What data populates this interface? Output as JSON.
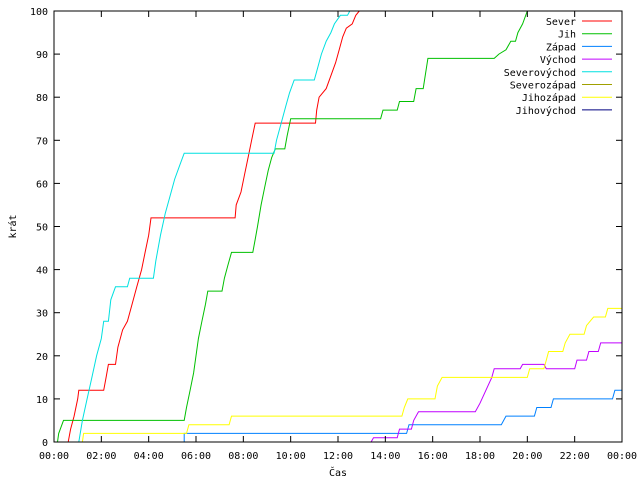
{
  "chart_data": {
    "type": "line",
    "title": "",
    "xlabel": "Čas",
    "ylabel": "krát",
    "xlim": [
      0,
      24
    ],
    "ylim": [
      0,
      100
    ],
    "x_ticks": [
      {
        "value": 0,
        "label": "00:00"
      },
      {
        "value": 2,
        "label": "02:00"
      },
      {
        "value": 4,
        "label": "04:00"
      },
      {
        "value": 6,
        "label": "06:00"
      },
      {
        "value": 8,
        "label": "08:00"
      },
      {
        "value": 10,
        "label": "10:00"
      },
      {
        "value": 12,
        "label": "12:00"
      },
      {
        "value": 14,
        "label": "14:00"
      },
      {
        "value": 16,
        "label": "16:00"
      },
      {
        "value": 18,
        "label": "18:00"
      },
      {
        "value": 20,
        "label": "20:00"
      },
      {
        "value": 22,
        "label": "22:00"
      },
      {
        "value": 24,
        "label": "00:00"
      }
    ],
    "y_ticks": [
      0,
      10,
      20,
      30,
      40,
      50,
      60,
      70,
      80,
      90,
      100
    ],
    "grid": false,
    "legend_position": "top-right",
    "series": [
      {
        "name": "Sever",
        "color": "#ff0000",
        "points": [
          [
            0,
            0
          ],
          [
            0.6,
            0
          ],
          [
            0.7,
            3
          ],
          [
            0.85,
            6
          ],
          [
            1.0,
            10
          ],
          [
            1.05,
            12
          ],
          [
            2.1,
            12
          ],
          [
            2.2,
            15
          ],
          [
            2.3,
            18
          ],
          [
            2.6,
            18
          ],
          [
            2.7,
            22
          ],
          [
            2.9,
            26
          ],
          [
            3.1,
            28
          ],
          [
            3.3,
            32
          ],
          [
            3.5,
            36
          ],
          [
            3.7,
            40
          ],
          [
            3.85,
            44
          ],
          [
            4.0,
            48
          ],
          [
            4.1,
            52
          ],
          [
            7.65,
            52
          ],
          [
            7.7,
            55
          ],
          [
            7.9,
            58
          ],
          [
            8.05,
            62
          ],
          [
            8.2,
            66
          ],
          [
            8.35,
            70
          ],
          [
            8.5,
            74
          ],
          [
            11.05,
            74
          ],
          [
            11.1,
            77
          ],
          [
            11.2,
            80
          ],
          [
            11.5,
            82
          ],
          [
            11.7,
            85
          ],
          [
            11.9,
            88
          ],
          [
            12.05,
            91
          ],
          [
            12.2,
            94
          ],
          [
            12.35,
            96
          ],
          [
            12.6,
            97
          ],
          [
            12.75,
            99
          ],
          [
            12.9,
            100
          ]
        ]
      },
      {
        "name": "Jih",
        "color": "#00c000",
        "points": [
          [
            0,
            0
          ],
          [
            0.15,
            0
          ],
          [
            0.2,
            2
          ],
          [
            0.4,
            5
          ],
          [
            5.5,
            5
          ],
          [
            5.6,
            8
          ],
          [
            5.75,
            12
          ],
          [
            5.9,
            16
          ],
          [
            6.0,
            20
          ],
          [
            6.1,
            24
          ],
          [
            6.25,
            28
          ],
          [
            6.4,
            32
          ],
          [
            6.5,
            35
          ],
          [
            7.1,
            35
          ],
          [
            7.2,
            38
          ],
          [
            7.35,
            41
          ],
          [
            7.5,
            44
          ],
          [
            8.4,
            44
          ],
          [
            8.5,
            47
          ],
          [
            8.6,
            50
          ],
          [
            8.75,
            55
          ],
          [
            8.9,
            59
          ],
          [
            9.05,
            63
          ],
          [
            9.2,
            66
          ],
          [
            9.35,
            68
          ],
          [
            9.75,
            68
          ],
          [
            9.85,
            71
          ],
          [
            10.0,
            75
          ],
          [
            13.8,
            75
          ],
          [
            13.9,
            77
          ],
          [
            14.5,
            77
          ],
          [
            14.6,
            79
          ],
          [
            15.2,
            79
          ],
          [
            15.3,
            82
          ],
          [
            15.6,
            82
          ],
          [
            15.8,
            89
          ],
          [
            18.6,
            89
          ],
          [
            18.8,
            90
          ],
          [
            19.1,
            91
          ],
          [
            19.3,
            93
          ],
          [
            19.5,
            93
          ],
          [
            19.6,
            95
          ],
          [
            19.8,
            97
          ],
          [
            20.0,
            100
          ]
        ]
      },
      {
        "name": "Západ",
        "color": "#0080ff",
        "points": [
          [
            0,
            0
          ],
          [
            5.5,
            0
          ],
          [
            5.5,
            2
          ],
          [
            14.9,
            2
          ],
          [
            15.0,
            4
          ],
          [
            18.9,
            4
          ],
          [
            19.1,
            6
          ],
          [
            20.3,
            6
          ],
          [
            20.4,
            8
          ],
          [
            21.0,
            8
          ],
          [
            21.1,
            10
          ],
          [
            23.6,
            10
          ],
          [
            23.7,
            12
          ],
          [
            24,
            12
          ]
        ]
      },
      {
        "name": "Východ",
        "color": "#c000ff",
        "points": [
          [
            0,
            0
          ],
          [
            13.4,
            0
          ],
          [
            13.5,
            1
          ],
          [
            14.5,
            1
          ],
          [
            14.6,
            3
          ],
          [
            15.1,
            3
          ],
          [
            15.2,
            5
          ],
          [
            15.4,
            7
          ],
          [
            17.8,
            7
          ],
          [
            18.0,
            9
          ],
          [
            18.5,
            15
          ],
          [
            18.6,
            17
          ],
          [
            19.7,
            17
          ],
          [
            19.8,
            18
          ],
          [
            20.7,
            18
          ],
          [
            20.8,
            17
          ],
          [
            22.0,
            17
          ],
          [
            22.1,
            19
          ],
          [
            22.5,
            19
          ],
          [
            22.6,
            21
          ],
          [
            23.0,
            21
          ],
          [
            23.1,
            23
          ],
          [
            24,
            23
          ]
        ]
      },
      {
        "name": "Severovýchod",
        "color": "#00e0e0",
        "points": [
          [
            0,
            0
          ],
          [
            1.05,
            0
          ],
          [
            1.2,
            5
          ],
          [
            1.4,
            10
          ],
          [
            1.6,
            15
          ],
          [
            1.8,
            20
          ],
          [
            2.0,
            24
          ],
          [
            2.1,
            28
          ],
          [
            2.3,
            28
          ],
          [
            2.4,
            33
          ],
          [
            2.6,
            36
          ],
          [
            3.1,
            36
          ],
          [
            3.2,
            38
          ],
          [
            4.2,
            38
          ],
          [
            4.3,
            42
          ],
          [
            4.5,
            48
          ],
          [
            4.7,
            53
          ],
          [
            4.9,
            57
          ],
          [
            5.1,
            61
          ],
          [
            5.3,
            64
          ],
          [
            5.5,
            67
          ],
          [
            9.3,
            67
          ],
          [
            9.4,
            70
          ],
          [
            9.6,
            74
          ],
          [
            9.8,
            78
          ],
          [
            9.95,
            81
          ],
          [
            10.15,
            84
          ],
          [
            11.0,
            84
          ],
          [
            11.15,
            87
          ],
          [
            11.3,
            90
          ],
          [
            11.5,
            93
          ],
          [
            11.7,
            95
          ],
          [
            11.85,
            97
          ],
          [
            12.1,
            99
          ],
          [
            12.4,
            99
          ],
          [
            12.5,
            100
          ]
        ]
      },
      {
        "name": "Severozápad",
        "color": "#a0a000",
        "points": []
      },
      {
        "name": "Jihozápad",
        "color": "#ffff00",
        "points": [
          [
            0,
            0
          ],
          [
            1.2,
            0
          ],
          [
            1.25,
            2
          ],
          [
            5.6,
            2
          ],
          [
            5.7,
            4
          ],
          [
            7.4,
            4
          ],
          [
            7.5,
            6
          ],
          [
            14.7,
            6
          ],
          [
            14.8,
            8
          ],
          [
            14.95,
            10
          ],
          [
            16.1,
            10
          ],
          [
            16.2,
            13
          ],
          [
            16.4,
            15
          ],
          [
            20.0,
            15
          ],
          [
            20.1,
            17
          ],
          [
            20.7,
            17
          ],
          [
            20.8,
            19
          ],
          [
            20.9,
            21
          ],
          [
            21.5,
            21
          ],
          [
            21.6,
            23
          ],
          [
            21.8,
            25
          ],
          [
            22.4,
            25
          ],
          [
            22.5,
            27
          ],
          [
            22.8,
            29
          ],
          [
            23.3,
            29
          ],
          [
            23.4,
            31
          ],
          [
            24,
            31
          ]
        ]
      },
      {
        "name": "Jihovýchod",
        "color": "#000080",
        "points": []
      }
    ]
  }
}
